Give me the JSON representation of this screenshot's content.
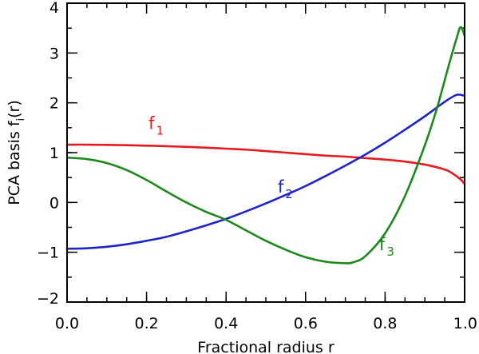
{
  "chart_data": {
    "type": "line",
    "title": "",
    "xlabel": "Fractional radius r",
    "ylabel": "PCA basis f",
    "ylabel_sub": "i",
    "ylabel_suffix": "(r)",
    "xlim": [
      0.0,
      1.0
    ],
    "ylim": [
      -2,
      4
    ],
    "x_ticks": [
      {
        "value": 0.0,
        "label": "0.0"
      },
      {
        "value": 0.2,
        "label": "0.2"
      },
      {
        "value": 0.4,
        "label": "0.4"
      },
      {
        "value": 0.6,
        "label": "0.6"
      },
      {
        "value": 0.8,
        "label": "0.8"
      },
      {
        "value": 1.0,
        "label": "1.0"
      }
    ],
    "y_ticks": [
      {
        "value": -2,
        "label": "−2"
      },
      {
        "value": -1,
        "label": "−1"
      },
      {
        "value": 0,
        "label": "0"
      },
      {
        "value": 1,
        "label": "1"
      },
      {
        "value": 2,
        "label": "2"
      },
      {
        "value": 3,
        "label": "3"
      },
      {
        "value": 4,
        "label": "4"
      }
    ],
    "x_minor_step": 0.05,
    "y_minor_step": 0.5,
    "grid": false,
    "legend": "none",
    "series": [
      {
        "name": "f",
        "subscript": "1",
        "color": "#e8191e",
        "label_at": {
          "x": 0.205,
          "y": 1.47
        },
        "x": [
          0.0,
          0.05,
          0.1,
          0.15,
          0.2,
          0.25,
          0.3,
          0.35,
          0.4,
          0.45,
          0.5,
          0.55,
          0.6,
          0.65,
          0.7,
          0.75,
          0.8,
          0.85,
          0.9,
          0.95,
          0.97,
          0.99,
          1.0
        ],
        "values": [
          1.16,
          1.16,
          1.155,
          1.15,
          1.14,
          1.13,
          1.115,
          1.1,
          1.08,
          1.06,
          1.03,
          1.0,
          0.97,
          0.94,
          0.92,
          0.89,
          0.86,
          0.82,
          0.76,
          0.66,
          0.58,
          0.46,
          0.37
        ]
      },
      {
        "name": "f",
        "subscript": "2",
        "color": "#1e24c8",
        "label_at": {
          "x": 0.53,
          "y": 0.2
        },
        "x": [
          0.0,
          0.05,
          0.1,
          0.15,
          0.2,
          0.25,
          0.3,
          0.35,
          0.4,
          0.45,
          0.5,
          0.55,
          0.6,
          0.65,
          0.7,
          0.75,
          0.8,
          0.85,
          0.9,
          0.95,
          0.98,
          1.0
        ],
        "values": [
          -0.93,
          -0.92,
          -0.89,
          -0.84,
          -0.77,
          -0.69,
          -0.58,
          -0.46,
          -0.33,
          -0.18,
          -0.02,
          0.15,
          0.33,
          0.53,
          0.74,
          0.96,
          1.2,
          1.46,
          1.73,
          2.02,
          2.16,
          2.14
        ]
      },
      {
        "name": "f",
        "subscript": "3",
        "color": "#1b8a1b",
        "label_at": {
          "x": 0.785,
          "y": -0.96
        },
        "x": [
          0.0,
          0.05,
          0.1,
          0.15,
          0.2,
          0.25,
          0.3,
          0.35,
          0.4,
          0.45,
          0.5,
          0.55,
          0.6,
          0.65,
          0.7,
          0.72,
          0.75,
          0.8,
          0.85,
          0.9,
          0.93,
          0.96,
          0.98,
          0.99,
          1.0
        ],
        "values": [
          0.9,
          0.87,
          0.79,
          0.65,
          0.45,
          0.22,
          0.0,
          -0.19,
          -0.35,
          -0.56,
          -0.77,
          -0.95,
          -1.1,
          -1.19,
          -1.22,
          -1.2,
          -1.08,
          -0.62,
          0.13,
          1.15,
          1.88,
          2.75,
          3.3,
          3.52,
          3.35
        ]
      }
    ]
  }
}
